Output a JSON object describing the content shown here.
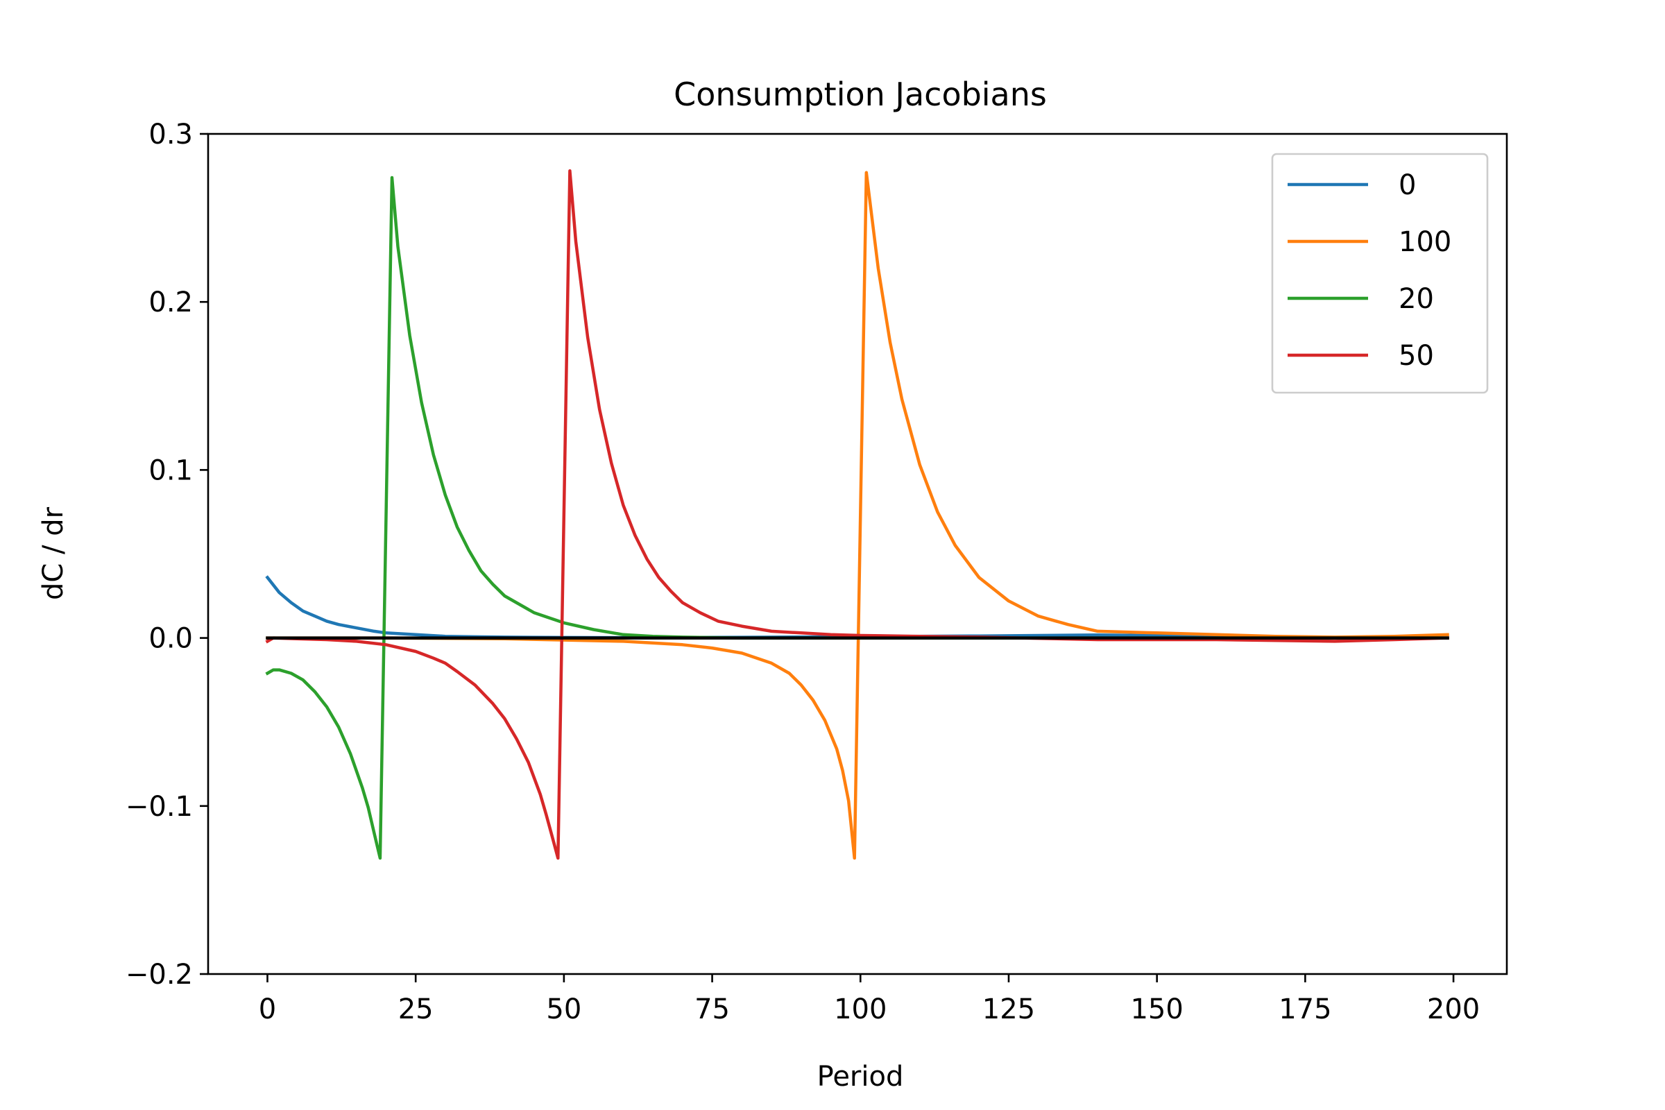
{
  "chart_data": {
    "type": "line",
    "title": "Consumption Jacobians",
    "xlabel": "Period",
    "ylabel": "dC / dr",
    "xlim": [
      -10,
      209
    ],
    "ylim": [
      -0.2,
      0.3
    ],
    "xticks": [
      0,
      25,
      50,
      75,
      100,
      125,
      150,
      175,
      200
    ],
    "xtick_labels": [
      "0",
      "25",
      "50",
      "75",
      "100",
      "125",
      "150",
      "175",
      "200"
    ],
    "yticks": [
      -0.2,
      -0.1,
      0.0,
      0.1,
      0.2,
      0.3
    ],
    "ytick_labels": [
      "−0.2",
      "−0.1",
      "0.0",
      "0.1",
      "0.2",
      "0.3"
    ],
    "grid": false,
    "legend_position": "top-right",
    "series": [
      {
        "name": "0",
        "color": "#1f77b4",
        "x": [
          0,
          2,
          4,
          6,
          8,
          10,
          12,
          15,
          18,
          20,
          25,
          30,
          35,
          40,
          50,
          60,
          80,
          100,
          120,
          140,
          160,
          180,
          199
        ],
        "y": [
          0.036,
          0.027,
          0.021,
          0.016,
          0.013,
          0.01,
          0.008,
          0.006,
          0.004,
          0.003,
          0.002,
          0.001,
          0.0007,
          0.0005,
          0.0003,
          0.0002,
          0.0004,
          0.0008,
          0.0012,
          0.0018,
          0.001,
          0.0004,
          0.0
        ]
      },
      {
        "name": "100",
        "color": "#ff7f0e",
        "x": [
          0,
          20,
          40,
          60,
          70,
          75,
          80,
          85,
          88,
          90,
          92,
          94,
          96,
          97,
          98,
          99,
          101,
          103,
          105,
          107,
          110,
          113,
          116,
          120,
          125,
          130,
          135,
          140,
          150,
          160,
          170,
          180,
          190,
          199
        ],
        "y": [
          0.0,
          0.0,
          -0.0005,
          -0.002,
          -0.004,
          -0.006,
          -0.009,
          -0.015,
          -0.021,
          -0.028,
          -0.037,
          -0.049,
          -0.066,
          -0.079,
          -0.097,
          -0.131,
          0.277,
          0.22,
          0.176,
          0.142,
          0.103,
          0.075,
          0.055,
          0.036,
          0.022,
          0.013,
          0.008,
          0.004,
          0.003,
          0.002,
          0.001,
          0.0005,
          0.001,
          0.002
        ]
      },
      {
        "name": "20",
        "color": "#2ca02c",
        "x": [
          0,
          1,
          2,
          4,
          6,
          8,
          10,
          12,
          14,
          16,
          17,
          18,
          19,
          21,
          22,
          24,
          26,
          28,
          30,
          32,
          34,
          36,
          38,
          40,
          45,
          50,
          55,
          60,
          65,
          70,
          80,
          100,
          120,
          150,
          199
        ],
        "y": [
          -0.021,
          -0.019,
          -0.019,
          -0.021,
          -0.025,
          -0.032,
          -0.041,
          -0.053,
          -0.069,
          -0.089,
          -0.101,
          -0.116,
          -0.131,
          0.274,
          0.233,
          0.18,
          0.14,
          0.109,
          0.085,
          0.066,
          0.052,
          0.04,
          0.032,
          0.025,
          0.015,
          0.009,
          0.005,
          0.002,
          0.001,
          0.0005,
          0.0,
          0.0,
          0.0,
          0.0,
          0.0
        ]
      },
      {
        "name": "50",
        "color": "#d62728",
        "x": [
          0,
          1,
          5,
          10,
          15,
          20,
          25,
          28,
          30,
          32,
          35,
          38,
          40,
          42,
          44,
          46,
          47,
          48,
          49,
          51,
          52,
          54,
          56,
          58,
          60,
          62,
          64,
          66,
          68,
          70,
          73,
          76,
          80,
          85,
          90,
          95,
          100,
          110,
          120,
          140,
          160,
          180,
          190,
          199
        ],
        "y": [
          -0.002,
          0.0,
          -0.0005,
          -0.001,
          -0.002,
          -0.004,
          -0.008,
          -0.012,
          -0.015,
          -0.02,
          -0.028,
          -0.039,
          -0.048,
          -0.06,
          -0.074,
          -0.093,
          -0.105,
          -0.118,
          -0.131,
          0.278,
          0.236,
          0.179,
          0.136,
          0.104,
          0.079,
          0.061,
          0.047,
          0.036,
          0.028,
          0.021,
          0.015,
          0.01,
          0.007,
          0.004,
          0.003,
          0.002,
          0.0015,
          0.001,
          0.0005,
          -0.001,
          -0.001,
          -0.002,
          -0.001,
          0.0
        ]
      },
      {
        "color": "#000000",
        "x": [
          0,
          199
        ],
        "y": [
          0.0,
          0.0
        ]
      }
    ],
    "legend": [
      "0",
      "100",
      "20",
      "50"
    ]
  }
}
